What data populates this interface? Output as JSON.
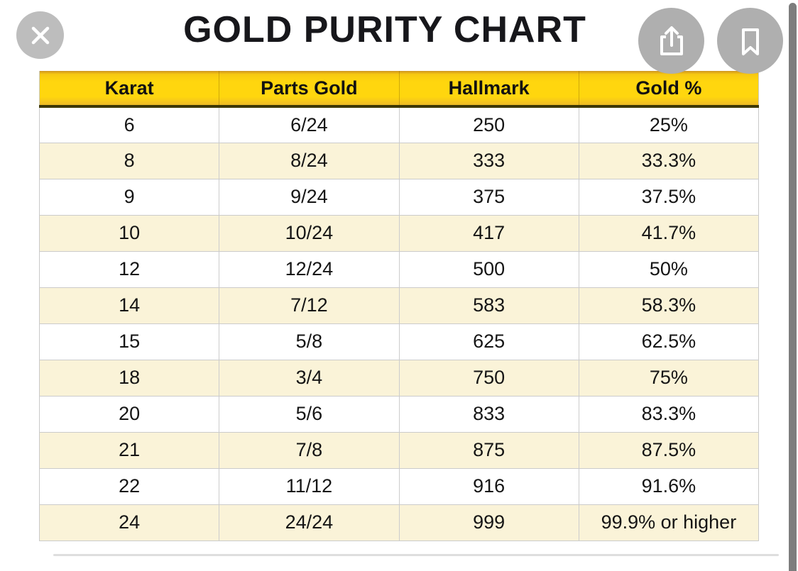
{
  "app": {
    "title": "GOLD PURITY CHART"
  },
  "toolbar": {
    "icons": [
      "close-icon",
      "share-icon",
      "bookmark-icon"
    ]
  },
  "colors": {
    "header-yellow": "#FFD60E",
    "header-yellow-dark": "#CE9420",
    "header-border": "#3C3700",
    "row-alt": "#FAF3D8",
    "row-border": "#CBCBCB",
    "button-gray": "#B3B3B3",
    "scrollbar-gray": "#7D7D7D",
    "title-color": "#17171B",
    "cell-color": "#151515"
  },
  "chart_data": {
    "type": "table",
    "title": "GOLD PURITY CHART",
    "columns": [
      "Karat",
      "Parts Gold",
      "Hallmark",
      "Gold %"
    ],
    "rows": [
      [
        "6",
        "6/24",
        "250",
        "25%"
      ],
      [
        "8",
        "8/24",
        "333",
        "33.3%"
      ],
      [
        "9",
        "9/24",
        "375",
        "37.5%"
      ],
      [
        "10",
        "10/24",
        "417",
        "41.7%"
      ],
      [
        "12",
        "12/24",
        "500",
        "50%"
      ],
      [
        "14",
        "7/12",
        "583",
        "58.3%"
      ],
      [
        "15",
        "5/8",
        "625",
        "62.5%"
      ],
      [
        "18",
        "3/4",
        "750",
        "75%"
      ],
      [
        "20",
        "5/6",
        "833",
        "83.3%"
      ],
      [
        "21",
        "7/8",
        "875",
        "87.5%"
      ],
      [
        "22",
        "11/12",
        "916",
        "91.6%"
      ],
      [
        "24",
        "24/24",
        "999",
        "99.9% or higher"
      ]
    ]
  }
}
